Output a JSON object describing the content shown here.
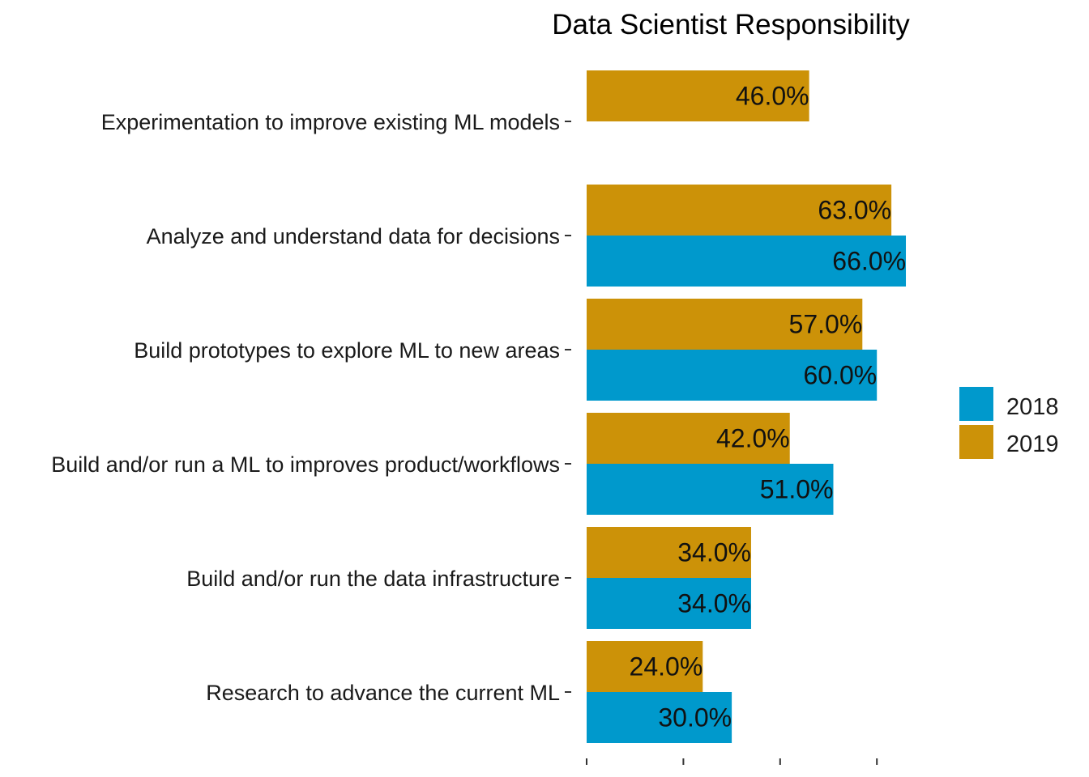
{
  "chart_data": {
    "type": "bar",
    "orientation": "horizontal",
    "title": "Data Scientist Responsibility",
    "xlabel": "",
    "ylabel": "",
    "xlim": [
      0,
      100
    ],
    "grid": false,
    "legend_position": "right",
    "categories": [
      "Experimentation to improve existing ML models",
      "Analyze and understand data for decisions",
      "Build prototypes to explore ML to new areas",
      "Build and/or run a ML to improves product/workflows",
      "Build and/or run the data infrastructure",
      "Research to advance the current ML"
    ],
    "series": [
      {
        "name": "2018",
        "color": "#0099cc",
        "values": [
          null,
          66.0,
          60.0,
          51.0,
          34.0,
          30.0
        ],
        "labels": [
          "",
          "66.0%",
          "60.0%",
          "51.0%",
          "34.0%",
          "30.0%"
        ]
      },
      {
        "name": "2019",
        "color": "#cc9208",
        "values": [
          46.0,
          63.0,
          57.0,
          42.0,
          34.0,
          24.0
        ],
        "labels": [
          "46.0%",
          "63.0%",
          "57.0%",
          "42.0%",
          "34.0%",
          "24.0%"
        ]
      }
    ]
  }
}
